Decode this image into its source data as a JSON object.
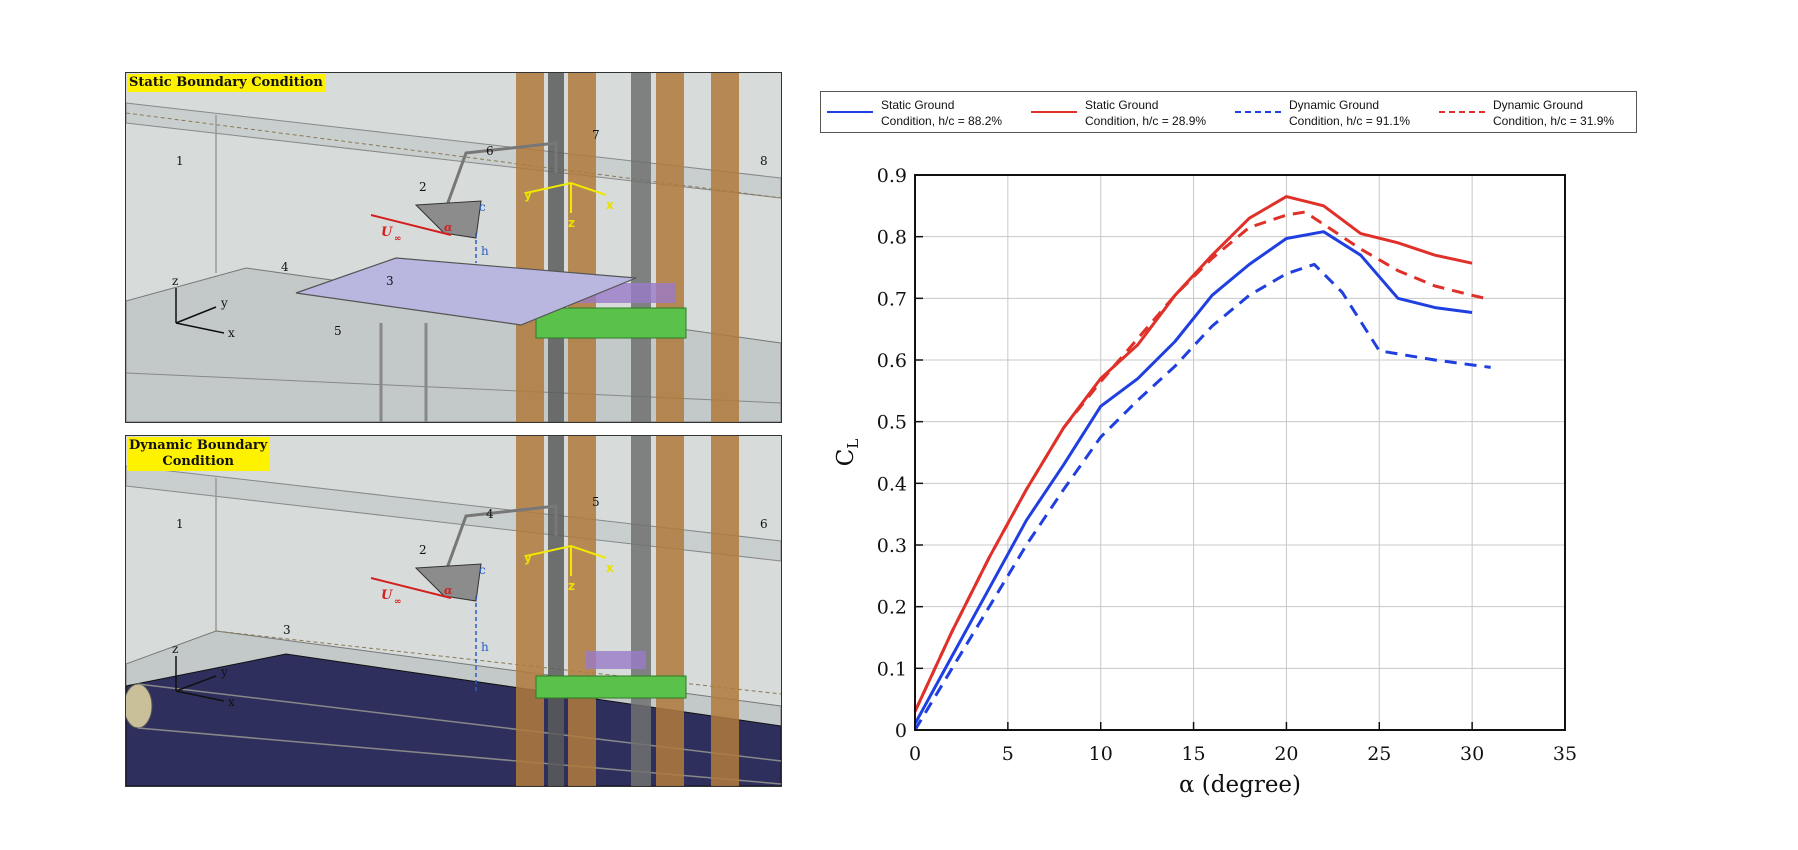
{
  "panels": {
    "static": {
      "title": "Static Boundary Condition",
      "labels": [
        "1",
        "2",
        "3",
        "4",
        "5",
        "6",
        "7",
        "8"
      ]
    },
    "dynamic": {
      "title_line1": "Dynamic Boundary",
      "title_line2": "Condition",
      "labels": [
        "1",
        "2",
        "3",
        "4",
        "5",
        "6"
      ]
    },
    "symbols": {
      "u": "U",
      "u_sub": "∞",
      "alpha": "α",
      "c": "c",
      "h": "h",
      "x": "x",
      "y": "y",
      "z": "z"
    }
  },
  "legend": {
    "items": [
      {
        "line1": "Static Ground",
        "line2": "Condition, h/c = 88.2%",
        "color": "#1f3fe0",
        "dash": "solid"
      },
      {
        "line1": "Static Ground",
        "line2": "Condition, h/c = 28.9%",
        "color": "#e0302a",
        "dash": "solid"
      },
      {
        "line1": "Dynamic Ground",
        "line2": "Condition, h/c = 91.1%",
        "color": "#1f3fe0",
        "dash": "dashed"
      },
      {
        "line1": "Dynamic Ground",
        "line2": "Condition, h/c = 31.9%",
        "color": "#e0302a",
        "dash": "dashed"
      }
    ]
  },
  "chart_data": {
    "type": "line",
    "xlabel": "α  (degree)",
    "ylabel": "C",
    "ylabel_sub": "L",
    "xlim": [
      0,
      35
    ],
    "ylim": [
      0,
      0.9
    ],
    "xticks": [
      "0",
      "5",
      "10",
      "15",
      "20",
      "25",
      "30",
      "35"
    ],
    "yticks": [
      "0",
      "0.1",
      "0.2",
      "0.3",
      "0.4",
      "0.5",
      "0.6",
      "0.7",
      "0.8",
      "0.9"
    ],
    "grid": true,
    "legend_position": "top",
    "series": [
      {
        "name": "Static Ground Condition, h/c = 88.2%",
        "color": "#1f3fe0",
        "dash": "solid",
        "x": [
          0,
          2,
          4,
          6,
          8,
          10,
          12,
          14,
          16,
          18,
          20,
          22,
          24,
          26,
          28,
          30
        ],
        "y": [
          0.01,
          0.12,
          0.23,
          0.34,
          0.43,
          0.525,
          0.57,
          0.63,
          0.705,
          0.755,
          0.797,
          0.808,
          0.77,
          0.7,
          0.685,
          0.677
        ]
      },
      {
        "name": "Static Ground Condition, h/c = 28.9%",
        "color": "#e0302a",
        "dash": "solid",
        "x": [
          0,
          2,
          4,
          6,
          8,
          10,
          12,
          14,
          16,
          18,
          20,
          22,
          24,
          26,
          28,
          30
        ],
        "y": [
          0.03,
          0.16,
          0.28,
          0.39,
          0.49,
          0.57,
          0.625,
          0.705,
          0.77,
          0.83,
          0.865,
          0.85,
          0.805,
          0.79,
          0.77,
          0.757
        ]
      },
      {
        "name": "Dynamic Ground Condition, h/c = 91.1%",
        "color": "#1f3fe0",
        "dash": "dashed",
        "x": [
          0,
          2,
          4,
          6,
          8,
          10,
          12,
          14,
          16,
          18,
          20,
          21.5,
          23,
          25,
          28,
          31
        ],
        "y": [
          0.0,
          0.1,
          0.2,
          0.3,
          0.39,
          0.475,
          0.535,
          0.59,
          0.655,
          0.705,
          0.74,
          0.755,
          0.71,
          0.615,
          0.6,
          0.588
        ]
      },
      {
        "name": "Dynamic Ground Condition, h/c = 31.9%",
        "color": "#e0302a",
        "dash": "dashed",
        "x": [
          0,
          2,
          4,
          6,
          8,
          10,
          12,
          14,
          16,
          18,
          20,
          21,
          22,
          24,
          26,
          28,
          30,
          31
        ],
        "y": [
          0.03,
          0.16,
          0.28,
          0.39,
          0.49,
          0.565,
          0.635,
          0.705,
          0.765,
          0.815,
          0.835,
          0.84,
          0.82,
          0.78,
          0.745,
          0.72,
          0.705,
          0.698
        ]
      }
    ]
  }
}
